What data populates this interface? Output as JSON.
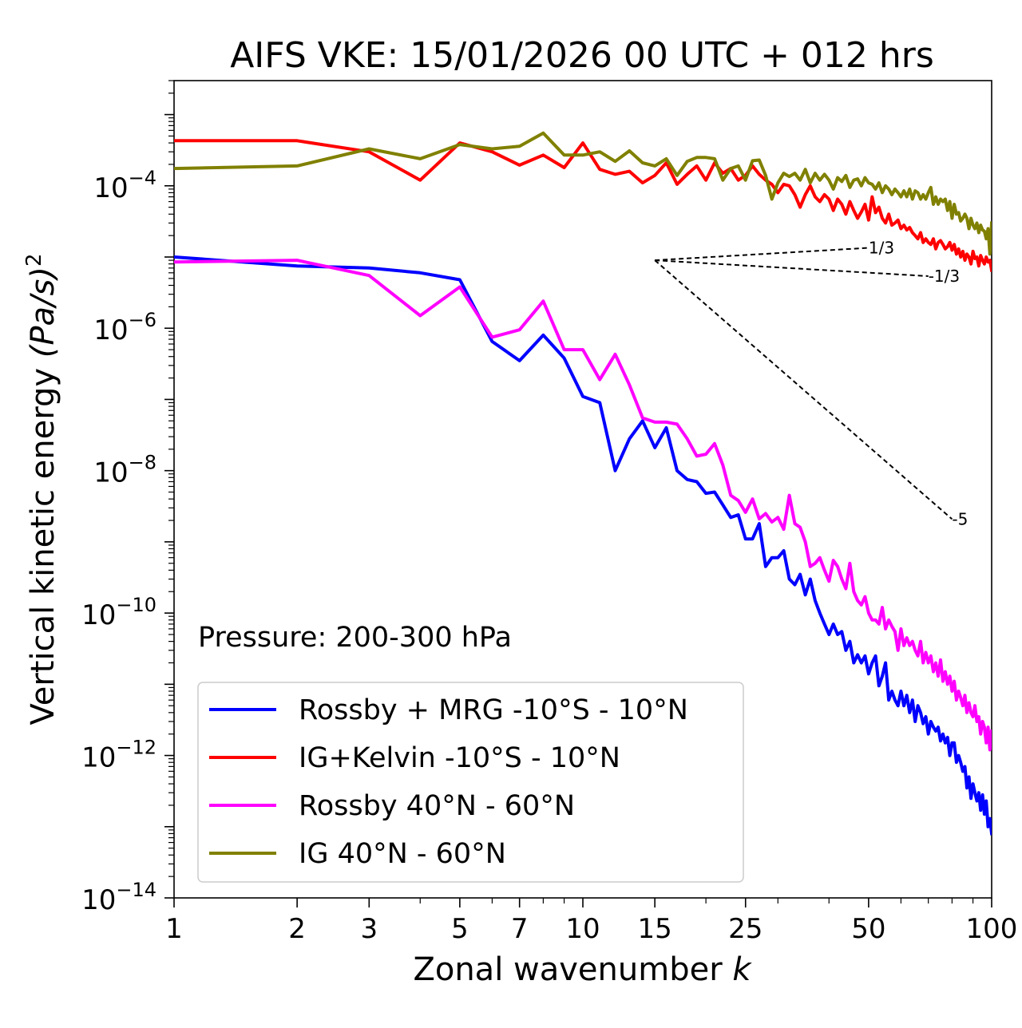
{
  "chart_data": {
    "type": "line",
    "title": "AIFS VKE: 15/01/2026 00 UTC + 012 hrs",
    "xlabel": "Zonal wavenumber",
    "xlabel_var": "k",
    "ylabel": "Vertical kinetic energy",
    "ylabel_unit": "(Pa/s)",
    "ylabel_exp": "2",
    "xscale": "log",
    "yscale": "log",
    "xlim": [
      1,
      100
    ],
    "ylim": [
      1e-14,
      0.003
    ],
    "xticks": [
      1,
      2,
      3,
      5,
      7,
      10,
      15,
      25,
      50,
      100
    ],
    "xtick_labels": [
      "1",
      "2",
      "3",
      "5",
      "7",
      "10",
      "15",
      "25",
      "50",
      "100"
    ],
    "yticks": [
      -4,
      -6,
      -8,
      -10,
      -12,
      -14
    ],
    "ytick_base": "10",
    "ytick_exponents": [
      "−4",
      "−6",
      "−8",
      "−10",
      "−12",
      "−14"
    ],
    "annotation": "Pressure: 200-300 hPa",
    "legend_position": "lower-left",
    "series": [
      {
        "name": "Rossby + MRG -10°S - 10°N",
        "color": "#0000ff",
        "x": [
          1,
          2,
          3,
          4,
          5,
          6,
          7,
          8,
          9,
          10,
          11,
          12,
          13,
          14,
          15,
          16,
          17,
          18,
          19,
          20,
          21,
          22,
          23,
          24,
          25,
          26,
          27,
          28,
          29,
          30,
          31,
          32,
          33,
          34,
          35,
          36,
          37,
          38,
          39,
          40,
          41,
          42,
          43,
          44,
          45,
          46,
          47,
          48,
          49,
          50,
          51,
          52,
          53,
          54,
          55,
          56,
          57,
          58,
          59,
          60,
          61,
          62,
          63,
          64,
          65,
          66,
          67,
          68,
          69,
          70,
          71,
          72,
          73,
          74,
          75,
          76,
          77,
          78,
          79,
          80,
          81,
          82,
          83,
          84,
          85,
          86,
          87,
          88,
          89,
          90,
          91,
          92,
          93,
          94,
          95,
          96,
          97,
          98,
          99,
          100
        ],
        "values": [
          1e-05,
          7.5e-06,
          7e-06,
          6e-06,
          4.8e-06,
          6.5e-07,
          3.5e-07,
          8e-07,
          3.8e-07,
          1.1e-07,
          9e-08,
          1e-08,
          2.8e-08,
          5e-08,
          2.1e-08,
          4e-08,
          1e-08,
          7.5e-09,
          7e-09,
          4.8e-09,
          5e-09,
          3.3e-09,
          2.2e-09,
          2.4e-09,
          1.1e-09,
          1.1e-09,
          1.8e-09,
          4.5e-10,
          6e-10,
          6e-10,
          7.5e-10,
          3e-10,
          2.5e-10,
          3.5e-10,
          1.8e-10,
          3e-10,
          1.5e-10,
          1e-10,
          7e-11,
          5e-11,
          7e-11,
          5e-11,
          5.5e-11,
          3e-11,
          4e-11,
          2e-11,
          2.6e-11,
          2e-11,
          2.5e-11,
          1.4e-11,
          2e-11,
          2.5e-11,
          9.5e-12,
          1.3e-11,
          2e-11,
          6e-12,
          8e-12,
          6e-12,
          5e-12,
          8e-12,
          5e-12,
          7e-12,
          4e-12,
          6e-12,
          3e-12,
          5e-12,
          4e-12,
          2.8e-12,
          3.5e-12,
          2e-12,
          3e-12,
          2.5e-12,
          2.2e-12,
          2.5e-12,
          1.6e-12,
          2e-12,
          1.5e-12,
          1.8e-12,
          1e-12,
          1.5e-12,
          1.5e-12,
          8e-13,
          1e-12,
          8e-13,
          6e-13,
          7e-13,
          3.5e-13,
          5e-13,
          2.5e-13,
          4e-13,
          3e-13,
          2.3e-13,
          3e-13,
          1.7e-13,
          2.8e-13,
          1.5e-13,
          2.3e-13,
          1e-13,
          1.3e-13,
          8e-14
        ]
      },
      {
        "name": "IG+Kelvin -10°S - 10°N",
        "color": "#ff0000",
        "x": [
          1,
          2,
          3,
          4,
          5,
          6,
          7,
          8,
          9,
          10,
          11,
          12,
          13,
          14,
          15,
          16,
          17,
          18,
          19,
          20,
          21,
          22,
          23,
          24,
          25,
          26,
          27,
          28,
          29,
          30,
          31,
          32,
          33,
          34,
          35,
          36,
          37,
          38,
          39,
          40,
          41,
          42,
          43,
          44,
          45,
          46,
          47,
          48,
          49,
          50,
          51,
          52,
          53,
          54,
          55,
          56,
          57,
          58,
          59,
          60,
          61,
          62,
          63,
          64,
          65,
          66,
          67,
          68,
          69,
          70,
          71,
          72,
          73,
          74,
          75,
          76,
          77,
          78,
          79,
          80,
          81,
          82,
          83,
          84,
          85,
          86,
          87,
          88,
          89,
          90,
          91,
          92,
          93,
          94,
          95,
          96,
          97,
          98,
          99,
          100
        ],
        "values": [
          0.00043,
          0.00043,
          0.0003,
          0.00012,
          0.0004,
          0.0003,
          0.000195,
          0.00027,
          0.00018,
          0.0004,
          0.00017,
          0.000145,
          0.00016,
          0.00011,
          0.00014,
          0.00021,
          0.000105,
          0.000145,
          0.00019,
          0.00012,
          0.00021,
          0.00015,
          0.000175,
          0.00012,
          0.00014,
          0.00019,
          0.000145,
          0.00012,
          0.000105,
          8e-05,
          0.000105,
          0.0001,
          7.5e-05,
          5e-05,
          7.5e-05,
          0.0001,
          7e-05,
          6e-05,
          7.5e-05,
          6.5e-05,
          4.5e-05,
          6.5e-05,
          5.5e-05,
          4e-05,
          6e-05,
          4.5e-05,
          3.5e-05,
          4.3e-05,
          5.5e-05,
          3.3e-05,
          7e-05,
          4.2e-05,
          5e-05,
          3.5e-05,
          3e-05,
          4e-05,
          2.8e-05,
          3e-05,
          3.3e-05,
          2.5e-05,
          2.8e-05,
          2.4e-05,
          2.6e-05,
          2.2e-05,
          2e-05,
          1.8e-05,
          2.2e-05,
          1.6e-05,
          1.8e-05,
          1.6e-05,
          1.5e-05,
          1.8e-05,
          1.3e-05,
          1.6e-05,
          1.7e-05,
          1.5e-05,
          1.3e-05,
          1.4e-05,
          1.6e-05,
          1.25e-05,
          1.5e-05,
          1.1e-05,
          1.3e-05,
          1e-05,
          1.2e-05,
          9e-06,
          1.1e-05,
          1e-05,
          8e-06,
          1.2e-05,
          9.5e-06,
          1e-05,
          7.5e-06,
          1.05e-05,
          9e-06,
          8e-06,
          1e-05,
          8.5e-06,
          9e-06,
          6.5e-06
        ]
      },
      {
        "name": "Rossby 40°N - 60°N",
        "color": "#ff00ff",
        "x": [
          1,
          2,
          3,
          4,
          5,
          6,
          7,
          8,
          9,
          10,
          11,
          12,
          13,
          14,
          15,
          16,
          17,
          18,
          19,
          20,
          21,
          22,
          23,
          24,
          25,
          26,
          27,
          28,
          29,
          30,
          31,
          32,
          33,
          34,
          35,
          36,
          37,
          38,
          39,
          40,
          41,
          42,
          43,
          44,
          45,
          46,
          47,
          48,
          49,
          50,
          51,
          52,
          53,
          54,
          55,
          56,
          57,
          58,
          59,
          60,
          61,
          62,
          63,
          64,
          65,
          66,
          67,
          68,
          69,
          70,
          71,
          72,
          73,
          74,
          75,
          76,
          77,
          78,
          79,
          80,
          81,
          82,
          83,
          84,
          85,
          86,
          87,
          88,
          89,
          90,
          91,
          92,
          93,
          94,
          95,
          96,
          97,
          98,
          99,
          100
        ],
        "values": [
          8.5e-06,
          9e-06,
          5.5e-06,
          1.5e-06,
          3.8e-06,
          7.5e-07,
          9.5e-07,
          2.4e-06,
          5e-07,
          5e-07,
          1.9e-07,
          4.3e-07,
          1.6e-07,
          5.5e-08,
          4.8e-08,
          4.8e-08,
          4.5e-08,
          2.8e-08,
          1.6e-08,
          1.7e-08,
          2.4e-08,
          1.2e-08,
          4.5e-09,
          3.8e-09,
          2.6e-09,
          4e-09,
          2.1e-09,
          2.5e-09,
          1.9e-09,
          2.2e-09,
          1.5e-09,
          4.5e-09,
          1.8e-09,
          1.6e-09,
          1e-09,
          4.5e-10,
          5e-10,
          6e-10,
          4e-10,
          2.8e-10,
          5.5e-10,
          4.5e-10,
          3e-10,
          2.2e-10,
          5e-10,
          2e-10,
          1.5e-10,
          1.3e-10,
          1.7e-10,
          1e-10,
          8e-11,
          8e-11,
          7e-11,
          1.2e-10,
          6e-11,
          8e-11,
          6.5e-11,
          5.5e-11,
          3e-11,
          6e-11,
          3.5e-11,
          4.5e-11,
          3.5e-11,
          4e-11,
          3e-11,
          2.5e-11,
          4e-11,
          2e-11,
          2.8e-11,
          2e-11,
          2.5e-11,
          1.5e-11,
          2e-11,
          1.3e-11,
          2.2e-11,
          1.1e-11,
          1.5e-11,
          1e-11,
          1.3e-11,
          8e-12,
          1.1e-11,
          6e-12,
          8e-12,
          6.5e-12,
          5e-12,
          7e-12,
          4e-12,
          5.5e-12,
          4e-12,
          3.5e-12,
          5e-12,
          3e-12,
          3.5e-12,
          2e-12,
          3e-12,
          2.5e-12,
          1.5e-12,
          2.5e-12,
          1.2e-12,
          2.2e-12
        ]
      },
      {
        "name": "IG 40°N - 60°N",
        "color": "#808000",
        "x": [
          1,
          2,
          3,
          4,
          5,
          6,
          7,
          8,
          9,
          10,
          11,
          12,
          13,
          14,
          15,
          16,
          17,
          18,
          19,
          20,
          21,
          22,
          23,
          24,
          25,
          26,
          27,
          28,
          29,
          30,
          31,
          32,
          33,
          34,
          35,
          36,
          37,
          38,
          39,
          40,
          41,
          42,
          43,
          44,
          45,
          46,
          47,
          48,
          49,
          50,
          51,
          52,
          53,
          54,
          55,
          56,
          57,
          58,
          59,
          60,
          61,
          62,
          63,
          64,
          65,
          66,
          67,
          68,
          69,
          70,
          71,
          72,
          73,
          74,
          75,
          76,
          77,
          78,
          79,
          80,
          81,
          82,
          83,
          84,
          85,
          86,
          87,
          88,
          89,
          90,
          91,
          92,
          93,
          94,
          95,
          96,
          97,
          98,
          99,
          100
        ],
        "values": [
          0.000175,
          0.00019,
          0.00033,
          0.00024,
          0.00038,
          0.00033,
          0.00036,
          0.00055,
          0.00027,
          0.00027,
          0.0003,
          0.00022,
          0.00031,
          0.00021,
          0.00019,
          0.00024,
          0.00014,
          0.00022,
          0.00025,
          0.00025,
          0.00024,
          0.00012,
          0.000175,
          0.00019,
          0.00012,
          0.000225,
          0.00023,
          0.00014,
          6.5e-05,
          0.00011,
          0.00015,
          0.000135,
          0.00015,
          0.00012,
          0.00017,
          0.00011,
          0.00015,
          0.00012,
          0.000145,
          0.00012,
          9e-05,
          0.00013,
          0.000115,
          0.00014,
          9.5e-05,
          0.00012,
          0.000125,
          0.0001,
          0.00013,
          0.00011,
          0.000105,
          9e-05,
          0.00011,
          8e-05,
          0.0001,
          9e-05,
          7.5e-05,
          9e-05,
          8e-05,
          7e-05,
          8.5e-05,
          7e-05,
          9e-05,
          6.5e-05,
          8.5e-05,
          8e-05,
          6.5e-05,
          7.5e-05,
          6.5e-05,
          8e-05,
          9.5e-05,
          5.5e-05,
          7e-05,
          5.5e-05,
          6.5e-05,
          6e-05,
          6.5e-05,
          4.5e-05,
          6e-05,
          3.5e-05,
          5.5e-05,
          4e-05,
          4.2e-05,
          3.2e-05,
          3.5e-05,
          4e-05,
          3.5e-05,
          2.5e-05,
          3.5e-05,
          2.8e-05,
          2.5e-05,
          3e-05,
          2.2e-05,
          2.8e-05,
          2.4e-05,
          2.3e-05,
          1.8e-05,
          2.5e-05,
          1.1e-05,
          3e-05
        ]
      }
    ],
    "reference_lines": [
      {
        "label": "1/3",
        "slope": 0.3333,
        "x": [
          15,
          50
        ],
        "y0": 9e-06
      },
      {
        "label": "-1/3",
        "slope": -0.3333,
        "x": [
          15,
          70
        ],
        "y0": 9e-06
      },
      {
        "label": "-5",
        "slope": -5,
        "x": [
          15,
          80
        ],
        "y0": 9e-06
      }
    ]
  }
}
